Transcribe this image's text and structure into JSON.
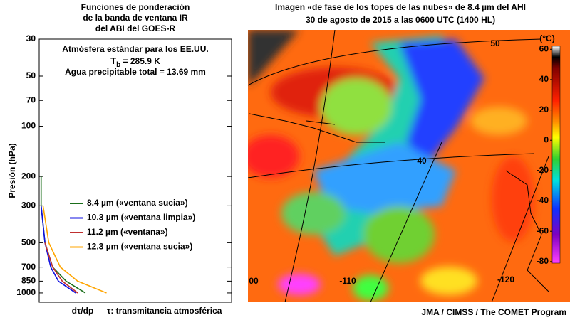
{
  "chart_data": {
    "type": "line",
    "title": [
      "Funciones de ponderación",
      "de la banda de ventana IR",
      "del ABI del GOES-R"
    ],
    "annotations": {
      "line1": "Atmósfera estándar para los EE.UU.",
      "tb_symbol": "T",
      "tb_subscript": "b",
      "tb_text": " = 285.9 K",
      "line3": "Agua precipitable total = 13.69 mm"
    },
    "y_label": "Presión (hPa)",
    "x_label": "dτ/dp",
    "x_note": "τ: transmitancia atmosférica",
    "y": [
      200,
      300,
      500,
      700,
      850,
      1000
    ],
    "ylim": [
      30,
      1137
    ],
    "y_log": true,
    "y_inverted": true,
    "yticks": [
      30,
      50,
      70,
      100,
      200,
      300,
      500,
      700,
      850,
      1000
    ],
    "xlim": [
      0,
      1
    ],
    "series": [
      {
        "name": "8.4 µm («ventana sucia»)",
        "color": "#1a6e1a",
        "values": [
          0.01,
          0.01,
          0.03,
          0.07,
          0.14,
          0.24
        ]
      },
      {
        "name": "10.3 µm («ventana limpia»)",
        "color": "#1010e0",
        "values": [
          null,
          0.01,
          0.03,
          0.06,
          0.1,
          0.19
        ]
      },
      {
        "name": "11.2 µm  («ventana»)",
        "color": "#c03030",
        "values": [
          null,
          null,
          0.03,
          0.07,
          0.12,
          0.2
        ]
      },
      {
        "name": "12.3 µm («ventana sucia»)",
        "color": "#ffa500",
        "values": [
          null,
          0.02,
          0.05,
          0.11,
          0.2,
          0.35
        ]
      }
    ]
  },
  "image": {
    "title": [
      "Imagen «de fase de los topes de las nubes» de 8.4 µm del AHI",
      "30 de agosto de 2015 a las 0600 UTC (1400 HL)"
    ],
    "colorbar": {
      "label": "(°C)",
      "lim": [
        -81,
        62
      ],
      "ticks": [
        60,
        40,
        20,
        0,
        -20,
        -40,
        -60,
        -80
      ]
    },
    "grid_labels": [
      "50",
      "40",
      "00",
      "-110",
      "-120"
    ],
    "credit": "JMA / CIMSS / The COMET Program"
  }
}
